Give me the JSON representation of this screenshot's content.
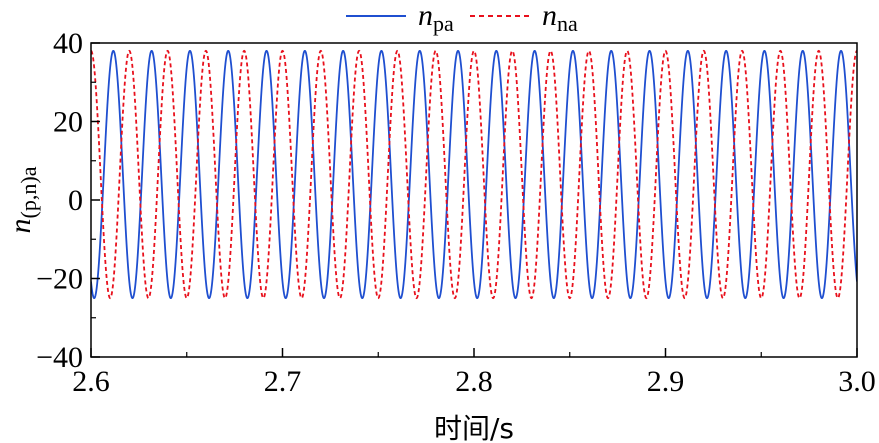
{
  "chart_data": {
    "type": "line",
    "title": "",
    "xlabel": "时间/s",
    "ylabel": {
      "main": "n",
      "sub": "(p,n)a"
    },
    "xlim": [
      2.6,
      3.0
    ],
    "ylim": [
      -40,
      40
    ],
    "xticks": [
      2.6,
      2.7,
      2.8,
      2.9,
      3.0
    ],
    "xtick_labels": [
      "2.6",
      "2.7",
      "2.8",
      "2.9",
      "3.0"
    ],
    "yticks": [
      -40,
      -20,
      0,
      20,
      40
    ],
    "ytick_labels": [
      "−40",
      "−20",
      "0",
      "20",
      "40"
    ],
    "grid": false,
    "legend_position": "top-center",
    "series": [
      {
        "name": {
          "main": "n",
          "sub": "pa"
        },
        "style": "solid",
        "color": "#1f4fd0",
        "function": "sine",
        "frequency_hz": 50,
        "max": 38,
        "min": -25,
        "phase_deg": -120
      },
      {
        "name": {
          "main": "n",
          "sub": "na"
        },
        "style": "dotted",
        "color": "#e8101c",
        "function": "sine",
        "frequency_hz": 50,
        "max": 38,
        "min": -25,
        "phase_deg": 90
      }
    ]
  }
}
